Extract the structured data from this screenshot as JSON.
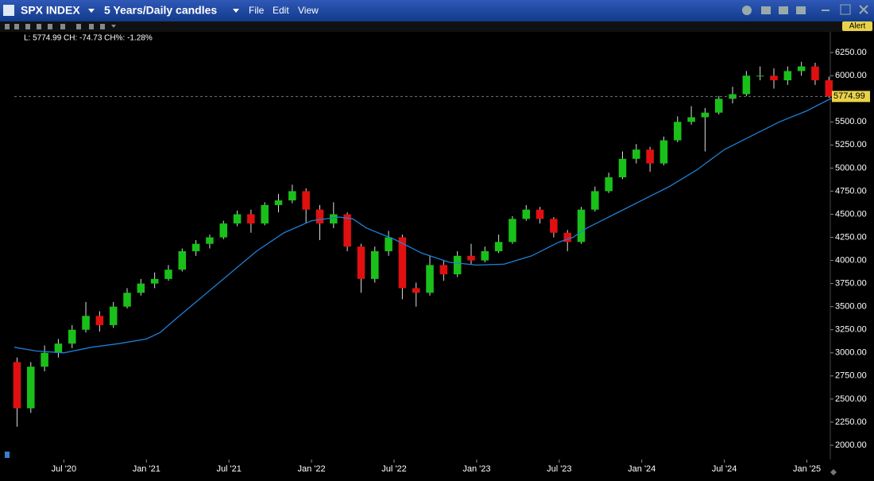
{
  "header": {
    "ticker": "SPX INDEX",
    "period": "5 Years/Daily candles",
    "menu": [
      "File",
      "Edit",
      "View"
    ],
    "alert": "Alert"
  },
  "chart_data": {
    "type": "candlestick",
    "legend_text": "L: 5774.99 CH: -74.73 CH%: -1.28%",
    "last_price": 5774.99,
    "up_color": "#19c019",
    "down_color": "#e01010",
    "ma_color": "#1e7fd8",
    "x": [
      2.6,
      3.6,
      4.6,
      5.6,
      6.6,
      7.6,
      8.6,
      9.6,
      10.6,
      11.6,
      12.6,
      13.6,
      14.6,
      15.6,
      16.6,
      17.6,
      18.6,
      19.6,
      20.6,
      21.6,
      22.6,
      23.6,
      24.6,
      25.6,
      26.6,
      27.6,
      28.6,
      29.6,
      30.6,
      31.6,
      32.6,
      33.6,
      34.6,
      35.6,
      36.6,
      37.6,
      38.6,
      39.6,
      40.6,
      41.6,
      42.6,
      43.6,
      44.6,
      45.6,
      46.6,
      47.6,
      48.6,
      49.6,
      50.6,
      51.6,
      52.6,
      53.6,
      54.6,
      55.6,
      56.6,
      57.6,
      58.6,
      59.6,
      60.6,
      61.6
    ],
    "open": [
      2900,
      2400,
      2850,
      3000,
      3100,
      3250,
      3400,
      3300,
      3500,
      3650,
      3750,
      3800,
      3900,
      4100,
      4180,
      4250,
      4400,
      4500,
      4400,
      4600,
      4650,
      4750,
      4550,
      4400,
      4500,
      4150,
      3800,
      4100,
      4250,
      3700,
      3650,
      3950,
      3850,
      4050,
      4000,
      4100,
      4200,
      4450,
      4550,
      4450,
      4300,
      4200,
      4550,
      4750,
      4900,
      5100,
      5200,
      5050,
      5300,
      5500,
      5550,
      5600,
      5750,
      5800,
      6000,
      6000,
      5950,
      6050,
      6100,
      5950
    ],
    "high": [
      2950,
      2900,
      3080,
      3150,
      3300,
      3550,
      3450,
      3550,
      3700,
      3800,
      3870,
      3950,
      4130,
      4220,
      4280,
      4430,
      4540,
      4550,
      4630,
      4720,
      4820,
      4780,
      4600,
      4630,
      4520,
      4180,
      4150,
      4320,
      4280,
      3760,
      4050,
      4000,
      4100,
      4180,
      4150,
      4280,
      4480,
      4600,
      4580,
      4470,
      4330,
      4580,
      4800,
      4950,
      5180,
      5260,
      5230,
      5340,
      5560,
      5670,
      5650,
      5780,
      5880,
      6050,
      6100,
      6080,
      6100,
      6150,
      6140,
      5990
    ],
    "low": [
      2200,
      2350,
      2800,
      2950,
      3050,
      3220,
      3230,
      3270,
      3480,
      3620,
      3700,
      3780,
      3880,
      4050,
      4130,
      4230,
      4370,
      4300,
      4380,
      4520,
      4620,
      4400,
      4220,
      4350,
      4100,
      3650,
      3760,
      4050,
      3580,
      3500,
      3620,
      3780,
      3820,
      3960,
      3980,
      4080,
      4180,
      4430,
      4400,
      4250,
      4100,
      4180,
      4530,
      4730,
      4880,
      5050,
      4960,
      5030,
      5280,
      5470,
      5180,
      5580,
      5700,
      5780,
      5950,
      5860,
      5900,
      6000,
      5900,
      5760
    ],
    "close": [
      2400,
      2850,
      3000,
      3100,
      3250,
      3400,
      3300,
      3500,
      3650,
      3750,
      3800,
      3900,
      4100,
      4180,
      4250,
      4400,
      4500,
      4400,
      4600,
      4650,
      4750,
      4550,
      4400,
      4500,
      4150,
      3800,
      4100,
      4250,
      3700,
      3650,
      3950,
      3850,
      4050,
      4000,
      4100,
      4200,
      4450,
      4550,
      4450,
      4300,
      4200,
      4550,
      4750,
      4900,
      5100,
      5200,
      5050,
      5300,
      5500,
      5550,
      5600,
      5750,
      5800,
      6000,
      6000,
      5950,
      6050,
      6100,
      5950,
      5775
    ],
    "ma_x": [
      2.4,
      4,
      6,
      8,
      10,
      12,
      13,
      14,
      16,
      18,
      20,
      22,
      24,
      26,
      27,
      28,
      30,
      32,
      34,
      36,
      38,
      40,
      42,
      43,
      44,
      46,
      48,
      50,
      52,
      54,
      56,
      58,
      60,
      61.7
    ],
    "ma_values": [
      3060,
      3020,
      3000,
      3060,
      3100,
      3150,
      3220,
      3350,
      3600,
      3850,
      4100,
      4300,
      4430,
      4470,
      4450,
      4350,
      4230,
      4080,
      3980,
      3950,
      3960,
      4050,
      4200,
      4250,
      4350,
      4500,
      4650,
      4800,
      4980,
      5200,
      5350,
      5500,
      5620,
      5750
    ],
    "xlim": [
      2.4,
      61.7
    ],
    "xticks": [
      {
        "value": 6,
        "label": "Jul '20"
      },
      {
        "value": 12,
        "label": "Jan '21"
      },
      {
        "value": 18,
        "label": "Jul '21"
      },
      {
        "value": 24,
        "label": "Jan '22"
      },
      {
        "value": 30,
        "label": "Jul '22"
      },
      {
        "value": 36,
        "label": "Jan '23"
      },
      {
        "value": 42,
        "label": "Jul '23"
      },
      {
        "value": 48,
        "label": "Jan '24"
      },
      {
        "value": 54,
        "label": "Jul '24"
      },
      {
        "value": 60,
        "label": "Jan '25"
      }
    ],
    "ylim": [
      1845,
      6475
    ],
    "yticks": [
      {
        "value": 2000,
        "label": "2000.00"
      },
      {
        "value": 2250,
        "label": "2250.00"
      },
      {
        "value": 2500,
        "label": "2500.00"
      },
      {
        "value": 2750,
        "label": "2750.00"
      },
      {
        "value": 3000,
        "label": "3000.00"
      },
      {
        "value": 3250,
        "label": "3250.00"
      },
      {
        "value": 3500,
        "label": "3500.00"
      },
      {
        "value": 3750,
        "label": "3750.00"
      },
      {
        "value": 4000,
        "label": "4000.00"
      },
      {
        "value": 4250,
        "label": "4250.00"
      },
      {
        "value": 4500,
        "label": "4500.00"
      },
      {
        "value": 4750,
        "label": "4750.00"
      },
      {
        "value": 5000,
        "label": "5000.00"
      },
      {
        "value": 5250,
        "label": "5250.00"
      },
      {
        "value": 5500,
        "label": "5500.00"
      },
      {
        "value": 5750,
        "label": "5750.00"
      },
      {
        "value": 6000,
        "label": "6000.00"
      },
      {
        "value": 6250,
        "label": "6250.00"
      }
    ]
  }
}
